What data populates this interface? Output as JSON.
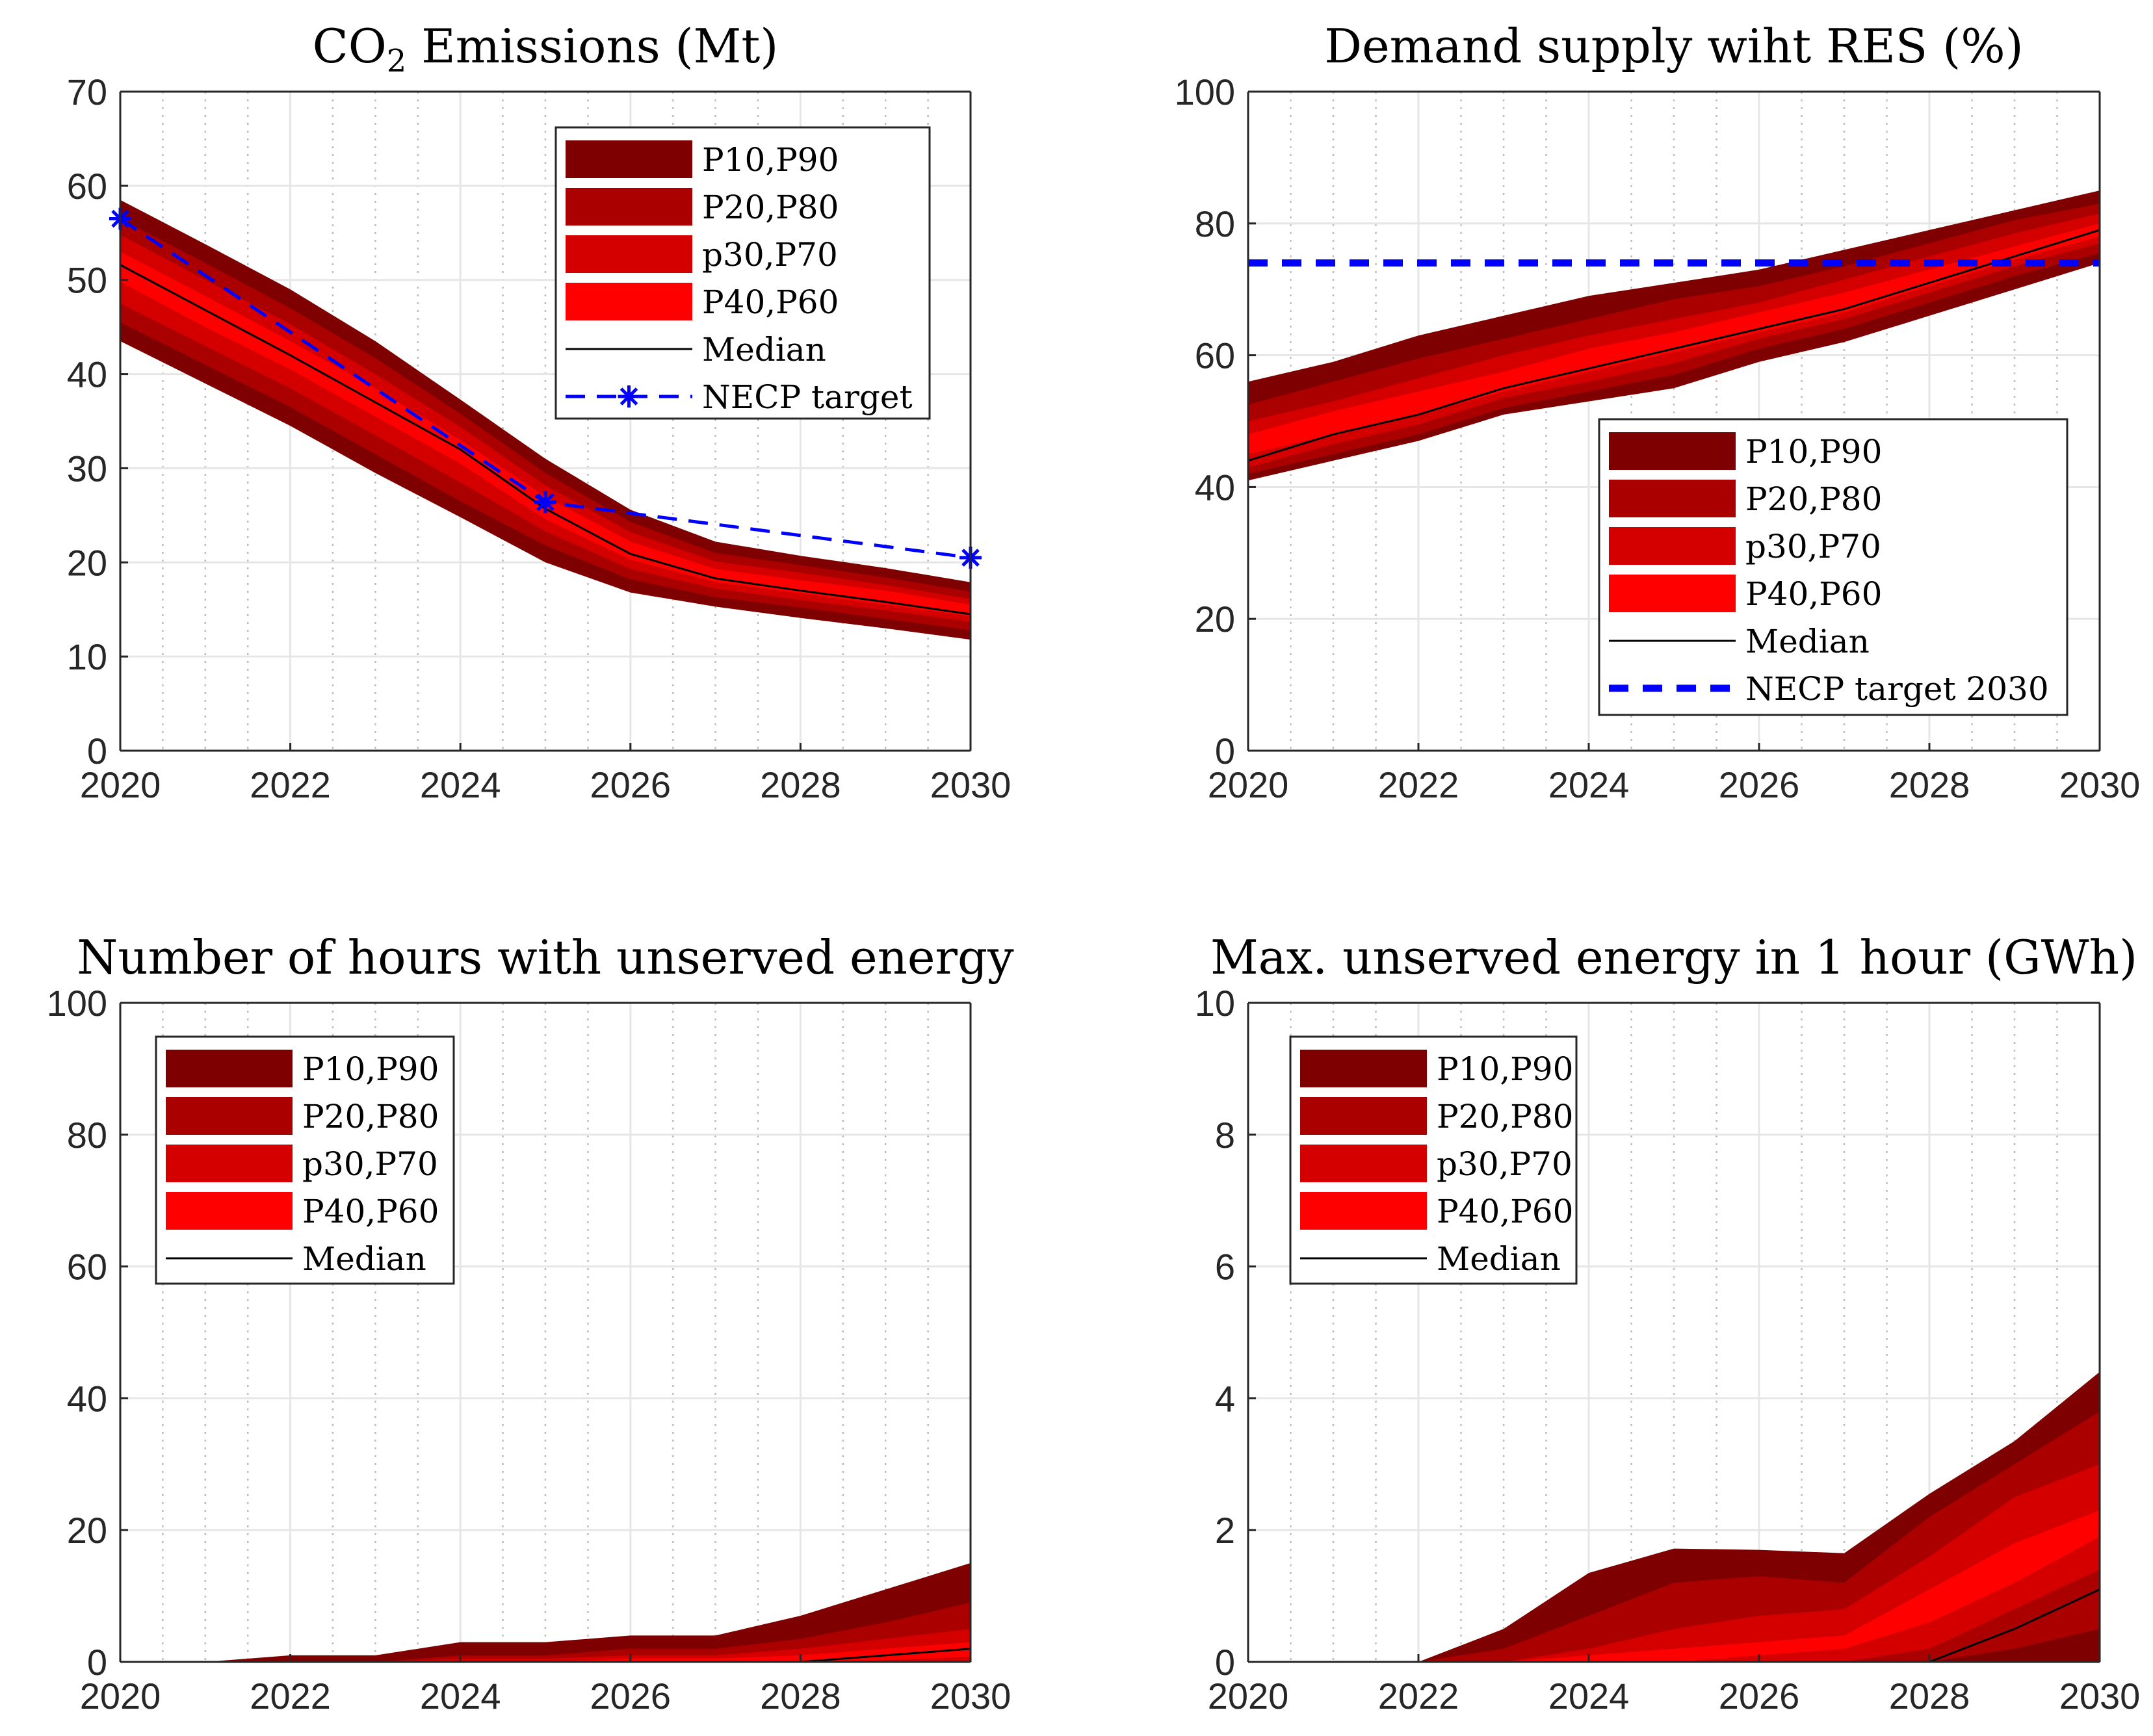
{
  "colors": {
    "band_p10_p90": "#7f0000",
    "band_p20_p80": "#aa0000",
    "band_p30_p70": "#d40000",
    "band_p40_p60": "#ff0000",
    "median": "#000000",
    "target": "#0000ff",
    "grid": "#e6e6e6"
  },
  "chart_data": [
    {
      "type": "area",
      "title": "CO2 Emissions (Mt)",
      "title_main": "CO",
      "title_sub": "2",
      "title_rest": " Emissions (Mt)",
      "xlim": [
        2020,
        2030
      ],
      "ylim": [
        0,
        70
      ],
      "xticks": [
        "2020",
        "2022",
        "2024",
        "2026",
        "2028",
        "2030"
      ],
      "yticks": [
        "0",
        "10",
        "20",
        "30",
        "40",
        "50",
        "60",
        "70"
      ],
      "legend_position": "top-right",
      "legend": [
        "P10,P90",
        "P20,P80",
        "p30,P70",
        "P40,P60",
        "Median",
        "NECP target"
      ],
      "x": [
        2020,
        2021,
        2022,
        2023,
        2024,
        2025,
        2026,
        2027,
        2028,
        2029,
        2030
      ],
      "bands": {
        "p10": [
          43.5,
          39,
          34.5,
          29.5,
          24.8,
          20,
          16.8,
          15.3,
          14.1,
          13,
          11.8
        ],
        "p20": [
          45.5,
          41,
          36.5,
          31.5,
          26.5,
          21.8,
          18.2,
          16.3,
          15.2,
          14,
          12.8
        ],
        "p30": [
          47.5,
          43,
          38.5,
          33.5,
          28.5,
          23.3,
          19.3,
          17.2,
          16,
          14.9,
          13.7
        ],
        "p40": [
          49.8,
          45,
          40.5,
          35.5,
          30.5,
          24.6,
          20.3,
          17.9,
          16.7,
          15.5,
          14.3
        ],
        "p60": [
          53,
          48.3,
          43.5,
          38.5,
          33,
          27,
          22.2,
          19.3,
          18.1,
          17,
          15.5
        ],
        "p70": [
          54.8,
          50,
          45.3,
          40,
          34.4,
          28.2,
          23.2,
          20.1,
          18.9,
          17.6,
          16.1
        ],
        "p80": [
          56.5,
          51.8,
          47,
          41.7,
          35.8,
          29.5,
          24.3,
          21,
          19.7,
          18.4,
          16.9
        ],
        "p90": [
          58.5,
          53.8,
          49,
          43.5,
          37.3,
          31,
          25.6,
          22.2,
          20.7,
          19.4,
          17.9
        ]
      },
      "median": [
        51.6,
        46.8,
        42,
        37,
        32,
        25.7,
        20.9,
        18.3,
        17,
        15.8,
        14.5
      ],
      "target": {
        "x": [
          2020,
          2025,
          2030
        ],
        "y": [
          56.5,
          26.4,
          20.5
        ],
        "style": "dashed-star"
      }
    },
    {
      "type": "area",
      "title": "Demand supply wiht RES (%)",
      "xlim": [
        2020,
        2030
      ],
      "ylim": [
        0,
        100
      ],
      "xticks": [
        "2020",
        "2022",
        "2024",
        "2026",
        "2028",
        "2030"
      ],
      "yticks": [
        "0",
        "20",
        "40",
        "60",
        "80",
        "100"
      ],
      "legend_position": "bottom-right",
      "legend": [
        "P10,P90",
        "P20,P80",
        "p30,P70",
        "P40,P60",
        "Median",
        "NECP target 2030"
      ],
      "x": [
        2020,
        2021,
        2022,
        2023,
        2024,
        2025,
        2026,
        2027,
        2028,
        2029,
        2030
      ],
      "bands": {
        "p10": [
          41,
          44,
          47,
          51,
          53,
          55,
          59,
          62,
          66,
          70,
          74
        ],
        "p20": [
          42,
          45,
          48,
          52,
          54.5,
          57,
          61,
          64,
          68,
          72,
          75.5
        ],
        "p30": [
          43,
          46.5,
          49.5,
          53.5,
          56,
          58.8,
          62.5,
          65.5,
          69.5,
          73.5,
          77
        ],
        "p40": [
          45,
          48,
          51,
          54.5,
          57.5,
          60.5,
          63.5,
          66.5,
          70.5,
          74.5,
          78
        ],
        "p60": [
          48,
          51.5,
          54.5,
          57.5,
          61,
          63.5,
          66.5,
          69.5,
          73,
          76.5,
          80
        ],
        "p70": [
          50,
          53,
          56.5,
          60,
          63,
          65.5,
          68,
          71.5,
          75,
          78.5,
          81.5
        ],
        "p80": [
          52.5,
          56,
          59.5,
          62.5,
          65.5,
          68.5,
          70.5,
          73.5,
          77,
          80.5,
          83
        ],
        "p90": [
          56,
          59,
          63,
          66,
          69,
          71,
          73,
          76,
          79,
          82,
          85
        ]
      },
      "median": [
        44,
        48,
        51,
        55,
        58,
        61,
        64,
        67,
        71,
        75,
        79
      ],
      "target": {
        "x": [
          2020,
          2030
        ],
        "y": [
          74,
          74
        ],
        "style": "dashed"
      }
    },
    {
      "type": "area",
      "title": "Number of hours with unserved energy",
      "xlim": [
        2020,
        2030
      ],
      "ylim": [
        0,
        100
      ],
      "xticks": [
        "2020",
        "2022",
        "2024",
        "2026",
        "2028",
        "2030"
      ],
      "yticks": [
        "0",
        "20",
        "40",
        "60",
        "80",
        "100"
      ],
      "legend_position": "top-left",
      "legend": [
        "P10,P90",
        "P20,P80",
        "p30,P70",
        "P40,P60",
        "Median"
      ],
      "x": [
        2020,
        2021,
        2022,
        2023,
        2024,
        2025,
        2026,
        2027,
        2028,
        2029,
        2030
      ],
      "bands": {
        "p10": [
          0,
          0,
          0,
          0,
          0,
          0,
          0,
          0,
          0,
          0,
          0
        ],
        "p20": [
          0,
          0,
          0,
          0,
          0,
          0,
          0,
          0,
          0,
          0,
          0
        ],
        "p30": [
          0,
          0,
          0,
          0,
          0,
          0,
          0,
          0,
          0,
          0,
          0
        ],
        "p40": [
          0,
          0,
          0,
          0,
          0,
          0,
          0,
          0,
          0,
          0.3,
          0.8
        ],
        "p60": [
          0,
          0,
          0,
          0,
          0,
          0,
          0.5,
          0.5,
          1,
          2,
          3
        ],
        "p70": [
          0,
          0,
          0,
          0,
          0.5,
          0.5,
          1,
          1,
          2,
          3.5,
          5
        ],
        "p80": [
          0,
          0,
          0,
          0,
          1,
          1,
          2,
          2,
          3.5,
          6,
          9
        ],
        "p90": [
          0,
          0,
          1,
          1,
          3,
          3,
          4,
          4,
          7,
          11,
          15
        ]
      },
      "median": [
        0,
        0,
        0,
        0,
        0,
        0,
        0,
        0,
        0,
        1,
        2
      ]
    },
    {
      "type": "area",
      "title": "Max. unserved energy in 1 hour (GWh)",
      "xlim": [
        2020,
        2030
      ],
      "ylim": [
        0,
        10
      ],
      "xticks": [
        "2020",
        "2022",
        "2024",
        "2026",
        "2028",
        "2030"
      ],
      "yticks": [
        "0",
        "2",
        "4",
        "6",
        "8",
        "10"
      ],
      "legend_position": "top-left",
      "legend": [
        "P10,P90",
        "P20,P80",
        "p30,P70",
        "P40,P60",
        "Median"
      ],
      "x": [
        2020,
        2021,
        2022,
        2023,
        2024,
        2025,
        2026,
        2027,
        2028,
        2029,
        2030
      ],
      "bands": {
        "p10": [
          0,
          0,
          0,
          0,
          0,
          0,
          0,
          0,
          0,
          0,
          0
        ],
        "p20": [
          0,
          0,
          0,
          0,
          0,
          0,
          0,
          0,
          0,
          0.2,
          0.5
        ],
        "p30": [
          0,
          0,
          0,
          0,
          0,
          0,
          0,
          0,
          0.2,
          0.8,
          1.4
        ],
        "p40": [
          0,
          0,
          0,
          0,
          0,
          0,
          0.1,
          0.2,
          0.6,
          1.2,
          1.9
        ],
        "p60": [
          0,
          0,
          0,
          0,
          0.1,
          0.2,
          0.3,
          0.4,
          1.1,
          1.8,
          2.3
        ],
        "p70": [
          0,
          0,
          0,
          0,
          0.2,
          0.5,
          0.7,
          0.8,
          1.6,
          2.5,
          3
        ],
        "p80": [
          0,
          0,
          0,
          0.2,
          0.7,
          1.2,
          1.3,
          1.2,
          2.2,
          3,
          3.8
        ],
        "p90": [
          0,
          0,
          0,
          0.5,
          1.35,
          1.72,
          1.7,
          1.65,
          2.55,
          3.35,
          4.4
        ]
      },
      "median": [
        0,
        0,
        0,
        0,
        0,
        0,
        0,
        0,
        0,
        0.5,
        1.1
      ]
    }
  ]
}
